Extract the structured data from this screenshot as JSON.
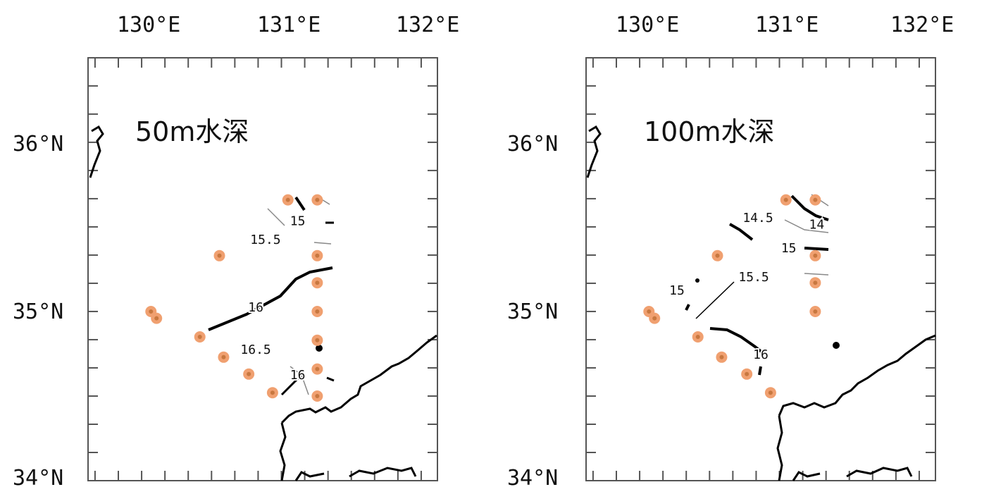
{
  "colors": {
    "station_fill": "#f0a070",
    "station_center": "#c87840",
    "frame": "#555555",
    "coast": "#000000",
    "contour": "#000000",
    "contour_thin": "#888888"
  },
  "axes": {
    "lon_labels": [
      "130°E",
      "131°E",
      "132°E"
    ],
    "lat_labels": [
      "36°N",
      "35°N",
      "34°N"
    ]
  },
  "maps": [
    {
      "title": "50m水深",
      "stations": [
        {
          "lon": 130.98,
          "lat": 35.66
        },
        {
          "lon": 131.19,
          "lat": 35.66
        },
        {
          "lon": 130.49,
          "lat": 35.33
        },
        {
          "lon": 131.19,
          "lat": 35.33
        },
        {
          "lon": 131.19,
          "lat": 35.17
        },
        {
          "lon": 131.19,
          "lat": 35.0
        },
        {
          "lon": 131.19,
          "lat": 34.83
        },
        {
          "lon": 131.19,
          "lat": 34.66
        },
        {
          "lon": 131.19,
          "lat": 34.5
        },
        {
          "lon": 130.0,
          "lat": 35.0
        },
        {
          "lon": 130.04,
          "lat": 34.96
        },
        {
          "lon": 130.35,
          "lat": 34.85
        },
        {
          "lon": 130.52,
          "lat": 34.73
        },
        {
          "lon": 130.7,
          "lat": 34.63
        },
        {
          "lon": 130.87,
          "lat": 34.52
        }
      ],
      "contours": [
        {
          "label": "15",
          "label_lon": 131.05,
          "label_lat": 35.51
        },
        {
          "label": "15.5",
          "label_lon": 130.82,
          "label_lat": 35.4
        },
        {
          "label": "16",
          "label_lon": 130.75,
          "label_lat": 35.0
        },
        {
          "label": "16.5",
          "label_lon": 130.75,
          "label_lat": 34.75
        },
        {
          "label": "16",
          "label_lon": 131.05,
          "label_lat": 34.6
        }
      ]
    },
    {
      "title": "100m水深",
      "stations": [
        {
          "lon": 130.98,
          "lat": 35.66
        },
        {
          "lon": 131.19,
          "lat": 35.66
        },
        {
          "lon": 130.49,
          "lat": 35.33
        },
        {
          "lon": 131.19,
          "lat": 35.33
        },
        {
          "lon": 131.19,
          "lat": 35.17
        },
        {
          "lon": 131.19,
          "lat": 35.0
        },
        {
          "lon": 130.0,
          "lat": 35.0
        },
        {
          "lon": 130.04,
          "lat": 34.96
        },
        {
          "lon": 130.35,
          "lat": 34.85
        },
        {
          "lon": 130.52,
          "lat": 34.73
        },
        {
          "lon": 130.7,
          "lat": 34.63
        },
        {
          "lon": 130.87,
          "lat": 34.52
        }
      ],
      "contours": [
        {
          "label": "14.5",
          "label_lon": 130.78,
          "label_lat": 35.53
        },
        {
          "label": "14",
          "label_lon": 131.2,
          "label_lat": 35.49
        },
        {
          "label": "15",
          "label_lon": 131.0,
          "label_lat": 35.35
        },
        {
          "label": "15.5",
          "label_lon": 130.75,
          "label_lat": 35.18
        },
        {
          "label": "15",
          "label_lon": 130.2,
          "label_lat": 35.1
        },
        {
          "label": "16",
          "label_lon": 130.8,
          "label_lat": 34.72
        }
      ]
    }
  ]
}
